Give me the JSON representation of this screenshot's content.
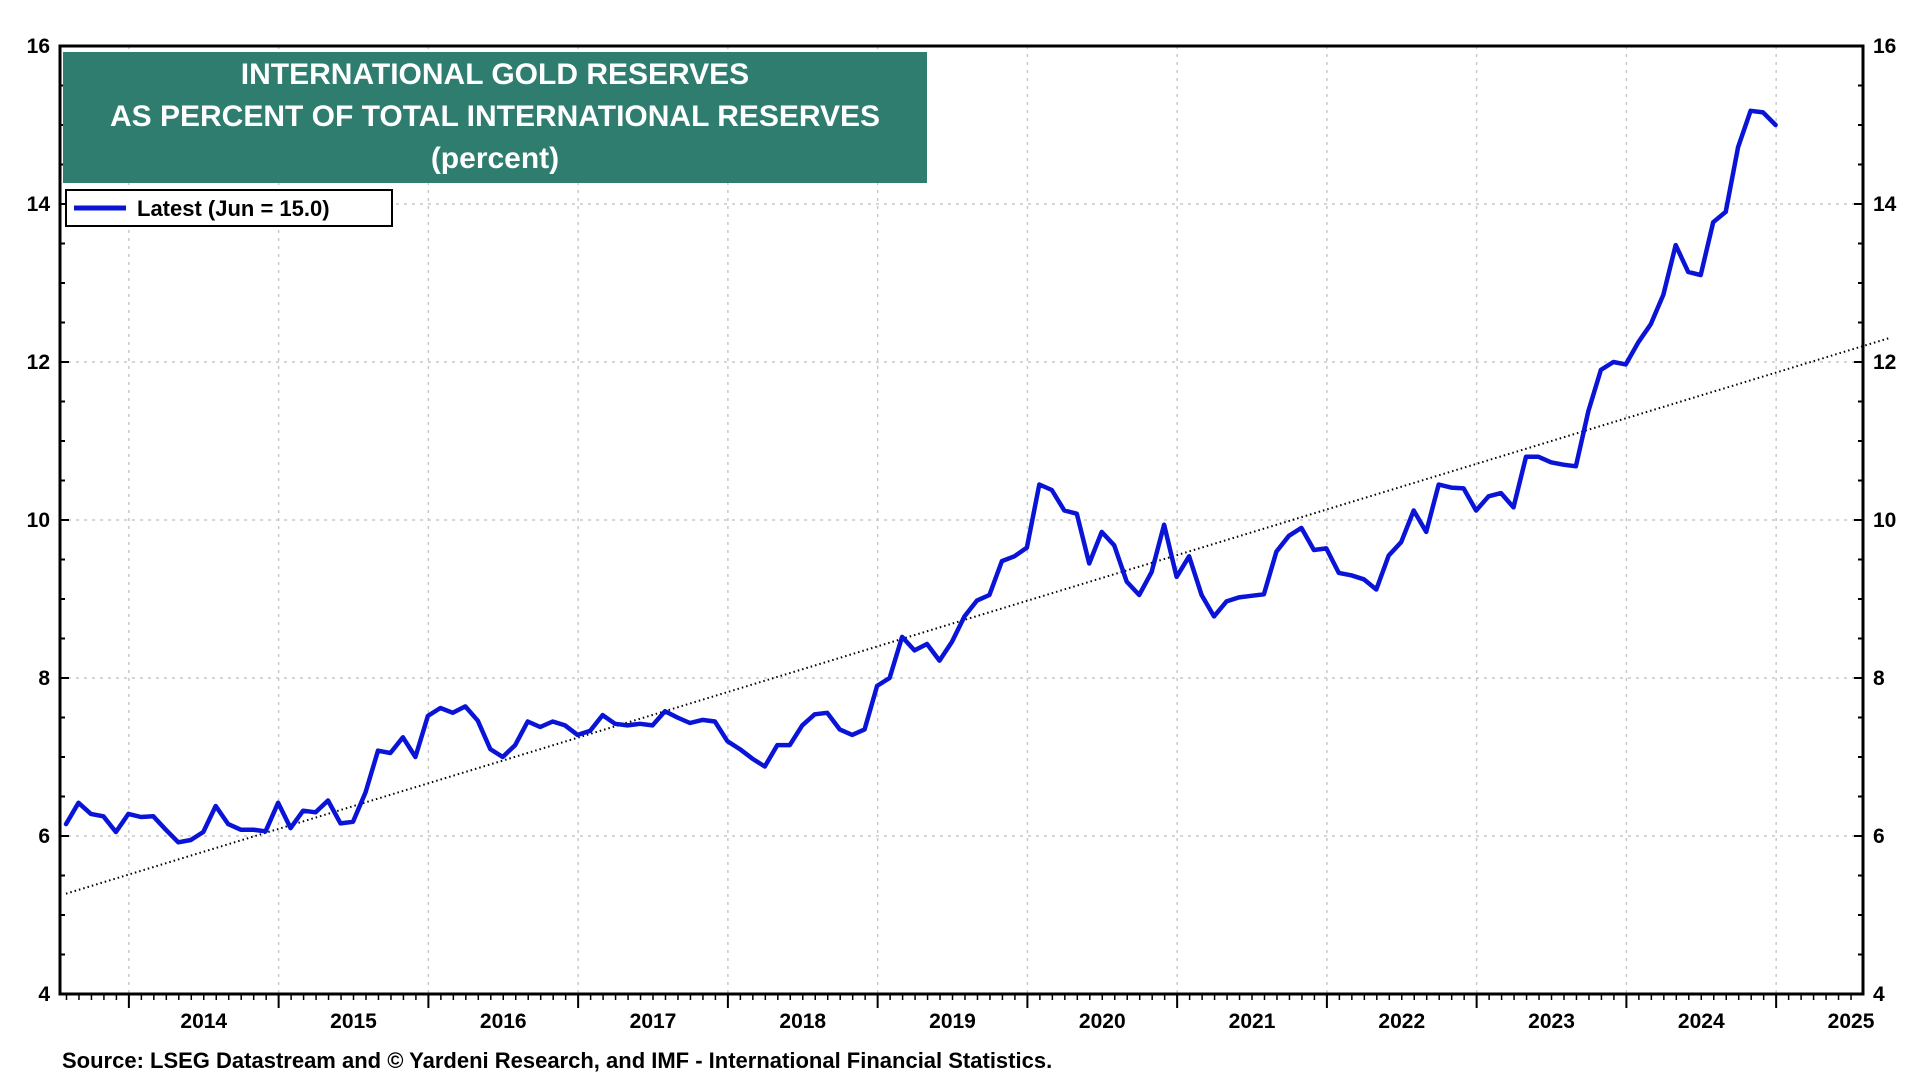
{
  "chart_data": {
    "type": "line",
    "title_lines": [
      "INTERNATIONAL GOLD RESERVES",
      "AS PERCENT OF TOTAL INTERNATIONAL RESERVES",
      "(percent)"
    ],
    "legend": {
      "label": "Latest (Jun = 15.0)",
      "color": "#0a14d6"
    },
    "source": "Source: LSEG Datastream and © Yardeni Research, and IMF - International Financial Statistics.",
    "ylim": [
      4,
      16
    ],
    "yticks": [
      4,
      6,
      8,
      10,
      12,
      14,
      16
    ],
    "x_years": [
      "2014",
      "2015",
      "2016",
      "2017",
      "2018",
      "2019",
      "2020",
      "2021",
      "2022",
      "2023",
      "2024",
      "2025"
    ],
    "x_range": [
      2013.54,
      2025.58
    ],
    "grid": true,
    "series": [
      {
        "name": "Gold reserves share",
        "color": "#0a14d6",
        "start": 2013.58,
        "step": 0.08333,
        "values": [
          6.15,
          6.42,
          6.28,
          6.25,
          6.05,
          6.28,
          6.24,
          6.25,
          6.08,
          5.92,
          5.95,
          6.05,
          6.38,
          6.15,
          6.08,
          6.08,
          6.06,
          6.42,
          6.1,
          6.32,
          6.3,
          6.45,
          6.16,
          6.18,
          6.55,
          7.08,
          7.05,
          7.25,
          7.0,
          7.52,
          7.62,
          7.56,
          7.64,
          7.46,
          7.1,
          7.0,
          7.15,
          7.45,
          7.38,
          7.45,
          7.4,
          7.28,
          7.33,
          7.53,
          7.42,
          7.4,
          7.42,
          7.4,
          7.58,
          7.5,
          7.43,
          7.47,
          7.45,
          7.2,
          7.1,
          6.98,
          6.88,
          7.15,
          7.15,
          7.4,
          7.54,
          7.56,
          7.35,
          7.28,
          7.35,
          7.9,
          8.0,
          8.52,
          8.35,
          8.43,
          8.22,
          8.46,
          8.78,
          8.98,
          9.05,
          9.48,
          9.54,
          9.65,
          10.45,
          10.38,
          10.12,
          10.08,
          9.45,
          9.85,
          9.68,
          9.22,
          9.05,
          9.34,
          9.94,
          9.28,
          9.54,
          9.05,
          8.78,
          8.97,
          9.02,
          9.04,
          9.06,
          9.6,
          9.8,
          9.9,
          9.62,
          9.64,
          9.33,
          9.3,
          9.25,
          9.12,
          9.55,
          9.72,
          10.12,
          9.85,
          10.45,
          10.41,
          10.4,
          10.12,
          10.3,
          10.34,
          10.16,
          10.8,
          10.8,
          10.73,
          10.7,
          10.68,
          11.38,
          11.9,
          12.0,
          11.97,
          12.25,
          12.48,
          12.85,
          13.48,
          13.14,
          13.1,
          13.77,
          13.9,
          14.72,
          15.18,
          15.16,
          15.0
        ]
      },
      {
        "name": "Trend",
        "color": "#000000",
        "dotted": true,
        "x": [
          2013.58,
          2025.75
        ],
        "values": [
          5.27,
          12.3
        ]
      }
    ]
  }
}
